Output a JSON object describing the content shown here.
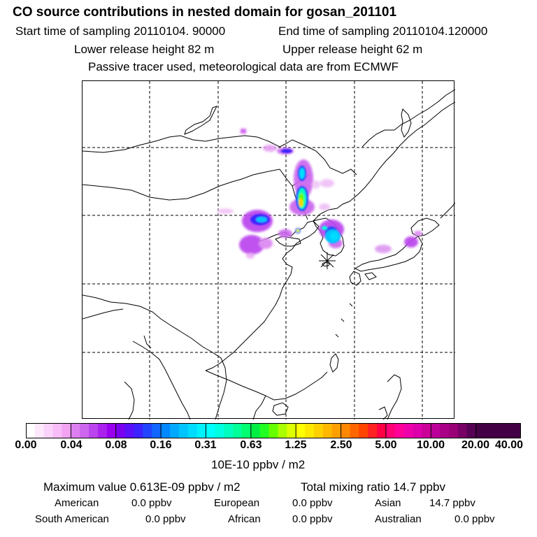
{
  "header": {
    "title": "CO  source contributions in nested domain for gosan_201101",
    "start_sampling": "Start time of sampling 20110104. 90000",
    "end_sampling": "End time of sampling 20110104.120000",
    "lower_release": "Lower release height   82 m",
    "upper_release": "Upper release height   62 m",
    "tracer_note": "Passive tracer used, meteorological data are from ECMWF"
  },
  "map": {
    "receptor_marker": "receptor-star",
    "background": "#ffffff",
    "coast_color": "#000000",
    "grid_style": "dashed"
  },
  "colorbar": {
    "ticks": [
      "0.00",
      "0.04",
      "0.08",
      "0.16",
      "0.31",
      "0.63",
      "1.25",
      "2.50",
      "5.00",
      "10.00",
      "20.00",
      "40.00"
    ],
    "unit": "10E-10 ppbv / m2",
    "segments": [
      [
        "#ffffff",
        "#fde8fd",
        "#fbd2fb",
        "#f8bcf8",
        "#f2a4f2"
      ],
      [
        "#dd7ff0",
        "#cc66ee",
        "#bb44ee",
        "#aa22ee",
        "#9900ee"
      ],
      [
        "#7a00f0",
        "#5a10f8",
        "#3c22ff",
        "#2244ff",
        "#1166ff"
      ],
      [
        "#0088ff",
        "#00a8ff",
        "#00c4ff",
        "#00dcff",
        "#00f0ff"
      ],
      [
        "#00ffff",
        "#00ffe0",
        "#00ffbf",
        "#00ff99",
        "#00ff70"
      ],
      [
        "#00ee44",
        "#22ff22",
        "#66ff00",
        "#aaff00",
        "#ddff00"
      ],
      [
        "#ffff00",
        "#ffe800",
        "#ffd000",
        "#ffb800",
        "#ffa000"
      ],
      [
        "#ff8800",
        "#ff6600",
        "#ff4400",
        "#ff2222",
        "#ff0044"
      ],
      [
        "#ff0077",
        "#ff0099",
        "#ee00aa",
        "#dd00aa",
        "#cc0099"
      ],
      [
        "#bb0099",
        "#aa0088",
        "#990077",
        "#770066",
        "#550055"
      ],
      [
        "#440044",
        "#440044",
        "#440044",
        "#440044",
        "#440044"
      ]
    ]
  },
  "summary": {
    "max_value": "Maximum value  0.613E-09 ppbv / m2",
    "total_mixing": "Total mixing ratio       14.7 ppbv"
  },
  "regions": [
    {
      "name": "American",
      "value": "0.0 ppbv"
    },
    {
      "name": "European",
      "value": "0.0 ppbv"
    },
    {
      "name": "Asian",
      "value": "14.7 ppbv"
    },
    {
      "name": "South American",
      "value": "0.0 ppbv"
    },
    {
      "name": "African",
      "value": "0.0 ppbv"
    },
    {
      "name": "Australian",
      "value": "0.0 ppbv"
    }
  ]
}
